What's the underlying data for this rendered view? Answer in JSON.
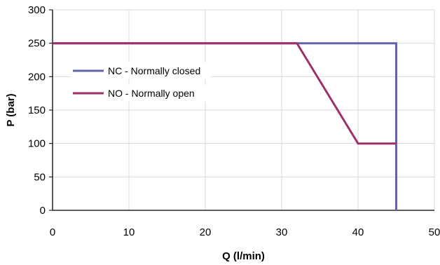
{
  "chart_data": {
    "type": "line",
    "title": "",
    "xlabel": "Q (l/min)",
    "ylabel": "P (bar)",
    "xlim": [
      0,
      50
    ],
    "ylim": [
      0,
      300
    ],
    "xticks": [
      0,
      10,
      20,
      30,
      40,
      50
    ],
    "yticks": [
      0,
      50,
      100,
      150,
      200,
      250,
      300
    ],
    "grid": true,
    "legend_position": "left",
    "series": [
      {
        "name": "NC - Normally closed",
        "color": "#6264a7",
        "points": [
          [
            0,
            250
          ],
          [
            45,
            250
          ],
          [
            45,
            0
          ]
        ]
      },
      {
        "name": "NO - Normally open",
        "color": "#a0306a",
        "points": [
          [
            0,
            250
          ],
          [
            32,
            250
          ],
          [
            40,
            100
          ],
          [
            45,
            100
          ]
        ]
      }
    ]
  }
}
